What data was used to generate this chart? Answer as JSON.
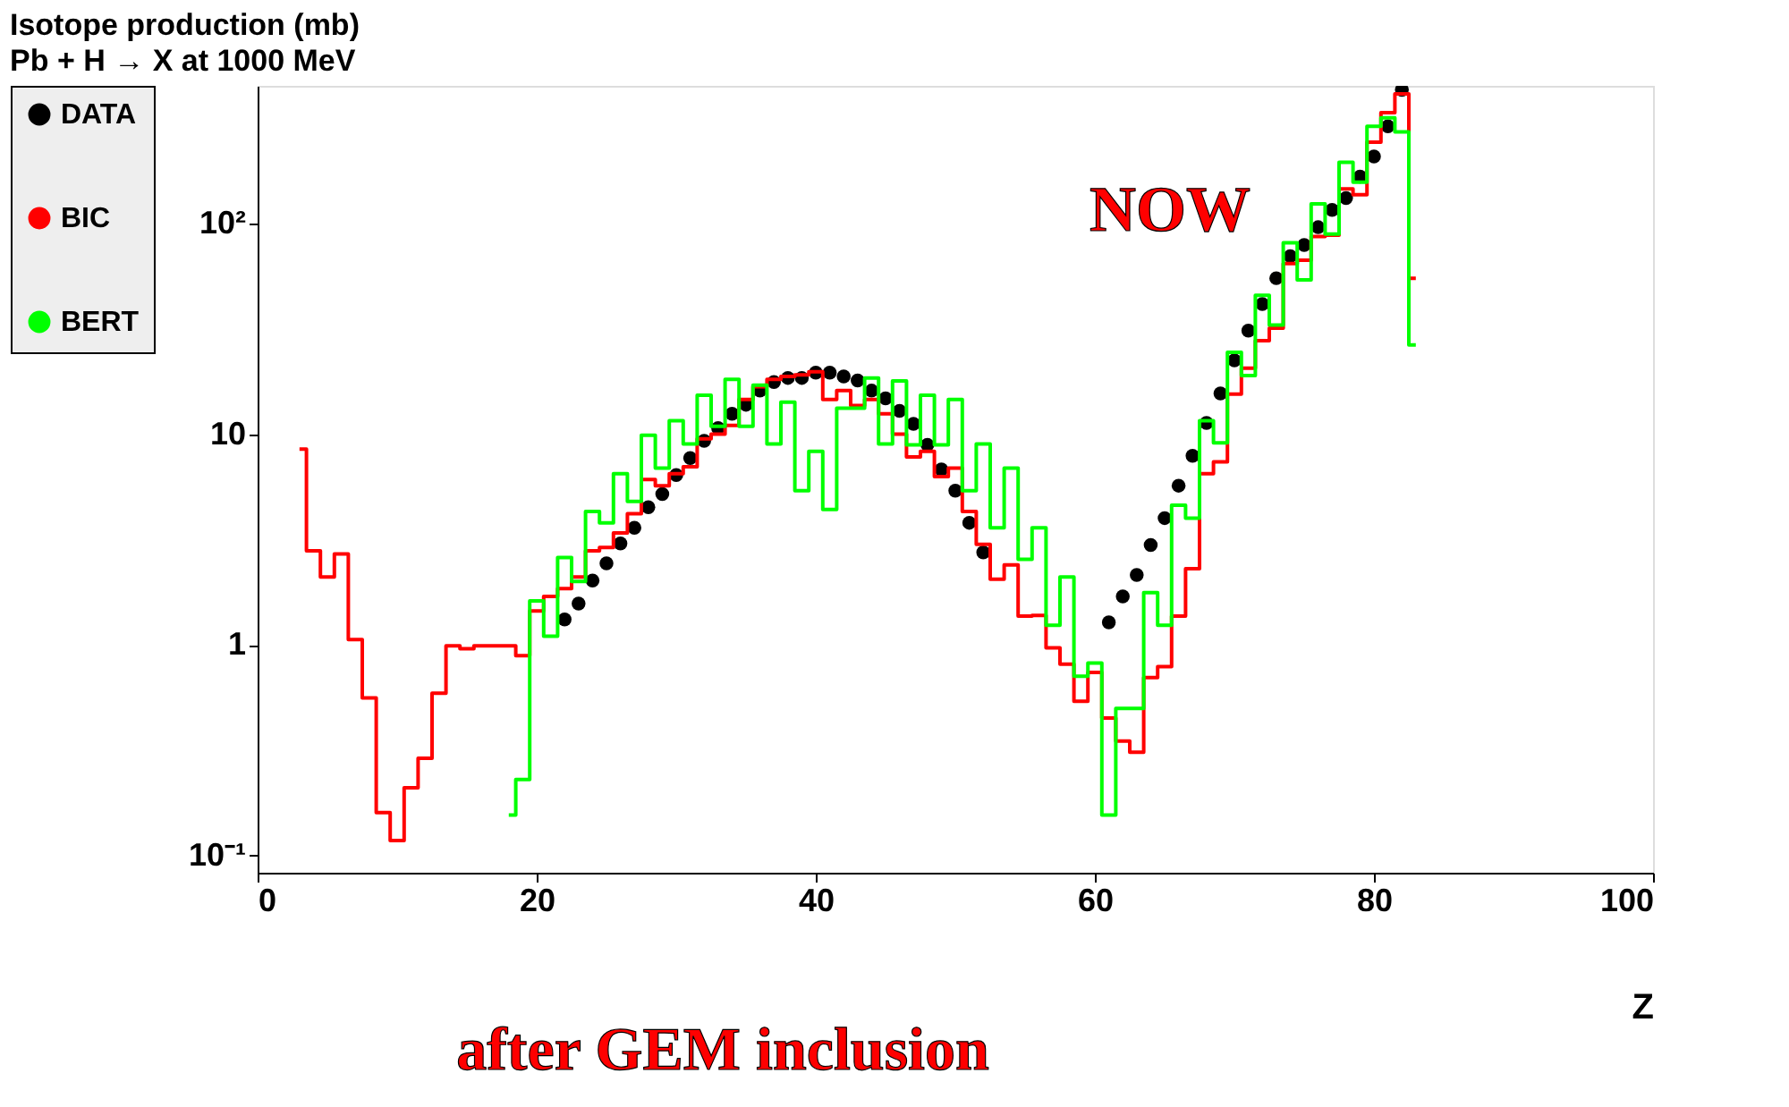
{
  "chart_data": {
    "type": "step",
    "title": "Isotope production (mb)",
    "subtitle": "Pb + H → X at 1000 MeV",
    "xlabel": "Z",
    "xlim": [
      0,
      100
    ],
    "xticks": [
      0,
      20,
      40,
      60,
      80,
      100
    ],
    "ylim": [
      0.083,
      450
    ],
    "yticks": [
      {
        "value": 0.1,
        "label": "10⁻¹"
      },
      1,
      10,
      {
        "value": 100,
        "label": "10²"
      }
    ],
    "log": "y",
    "grid": false,
    "legend": "left",
    "annotations": [
      "NOW",
      "after GEM inclusion"
    ],
    "series": [
      {
        "name": "DATA",
        "type": "scatter",
        "marker": "circle",
        "color": "#000000",
        "x": [
          22,
          23,
          24,
          25,
          26,
          27,
          28,
          29,
          30,
          31,
          32,
          33,
          34,
          35,
          36,
          37,
          38,
          39,
          40,
          41,
          42,
          43,
          44,
          45,
          46,
          47,
          48,
          49,
          50,
          51,
          52,
          61,
          62,
          63,
          64,
          65,
          66,
          67,
          68,
          69,
          70,
          71,
          72,
          73,
          74,
          75,
          76,
          77,
          78,
          79,
          80,
          81,
          82
        ],
        "values": [
          1.32,
          1.57,
          2.02,
          2.44,
          3.03,
          3.6,
          4.5,
          5.2,
          6.4,
          7.7,
          9.3,
          10.7,
          12.5,
          13.8,
          16.1,
          17.7,
          18.5,
          18.5,
          19.6,
          19.6,
          18.8,
          18.0,
          16.1,
          14.8,
          12.9,
          11.2,
          8.9,
          6.8,
          5.4,
          3.8,
          2.75,
          1.28,
          1.7,
          2.15,
          2.98,
          4.0,
          5.7,
          7.9,
          11.3,
          15.6,
          22.4,
          31,
          41.5,
          55,
          70,
          79,
          96,
          116,
          132,
          167,
          208,
          289,
          431
        ]
      },
      {
        "name": "BIC",
        "color": "#ff0000",
        "x": [
          3,
          4,
          5,
          6,
          7,
          8,
          9,
          10,
          11,
          12,
          13,
          14,
          15,
          16,
          17,
          18,
          19,
          20,
          21,
          22,
          23,
          24,
          25,
          26,
          27,
          28,
          29,
          30,
          31,
          32,
          33,
          34,
          35,
          36,
          37,
          38,
          39,
          40,
          41,
          42,
          43,
          44,
          45,
          46,
          47,
          48,
          49,
          50,
          51,
          52,
          53,
          54,
          55,
          56,
          57,
          58,
          59,
          60,
          61,
          62,
          63,
          64,
          65,
          66,
          67,
          68,
          69,
          70,
          71,
          72,
          73,
          74,
          75,
          76,
          77,
          78,
          79,
          80,
          81,
          82,
          83
        ],
        "values": [
          8.5,
          2.8,
          2.1,
          2.7,
          1.06,
          0.56,
          0.16,
          0.118,
          0.21,
          0.29,
          0.59,
          0.99,
          0.96,
          0.99,
          0.99,
          0.99,
          0.89,
          1.45,
          1.7,
          1.85,
          2.1,
          2.8,
          2.9,
          3.4,
          4.2,
          6.1,
          5.7,
          6.5,
          7.0,
          9.5,
          10.0,
          11.0,
          14.6,
          16.8,
          18.2,
          18.8,
          19.1,
          19.8,
          14.6,
          16.1,
          13.7,
          14.6,
          12.5,
          10.0,
          7.8,
          8.3,
          6.3,
          6.9,
          4.3,
          3.0,
          2.05,
          2.4,
          1.37,
          1.38,
          0.97,
          0.81,
          0.54,
          0.74,
          0.45,
          0.35,
          0.31,
          0.7,
          0.79,
          1.37,
          2.3,
          6.5,
          7.4,
          15.5,
          20.6,
          27.8,
          31.9,
          64.5,
          67,
          86.7,
          88,
          146,
          137,
          243,
          336,
          412,
          55
        ]
      },
      {
        "name": "BERT",
        "color": "#00ff00",
        "x": [
          18,
          19,
          20,
          21,
          22,
          23,
          24,
          25,
          26,
          27,
          28,
          29,
          30,
          31,
          32,
          33,
          34,
          35,
          36,
          37,
          38,
          39,
          40,
          41,
          42,
          43,
          44,
          45,
          46,
          47,
          48,
          49,
          50,
          51,
          52,
          53,
          54,
          55,
          56,
          57,
          58,
          59,
          60,
          61,
          62,
          63,
          64,
          65,
          66,
          67,
          68,
          69,
          70,
          71,
          72,
          73,
          74,
          75,
          76,
          77,
          78,
          79,
          80,
          81,
          82,
          83
        ],
        "values": [
          0.156,
          0.23,
          1.62,
          1.1,
          2.6,
          2.0,
          4.3,
          3.8,
          6.5,
          4.8,
          9.9,
          6.9,
          11.6,
          9.0,
          15.3,
          10.9,
          18.2,
          10.9,
          17.1,
          9.0,
          14.2,
          5.4,
          8.3,
          4.4,
          13.3,
          13.3,
          18.5,
          9.0,
          17.9,
          8.9,
          15.3,
          8.9,
          14.6,
          5.4,
          9.0,
          3.6,
          6.9,
          2.55,
          3.6,
          1.24,
          2.1,
          0.71,
          0.82,
          0.156,
          0.5,
          0.5,
          1.77,
          1.24,
          4.6,
          4.0,
          11.6,
          9.1,
          24.5,
          19.0,
          45.6,
          33,
          81,
          54,
          124,
          89,
          195,
          157,
          289,
          317,
          272,
          26.5
        ]
      }
    ]
  }
}
